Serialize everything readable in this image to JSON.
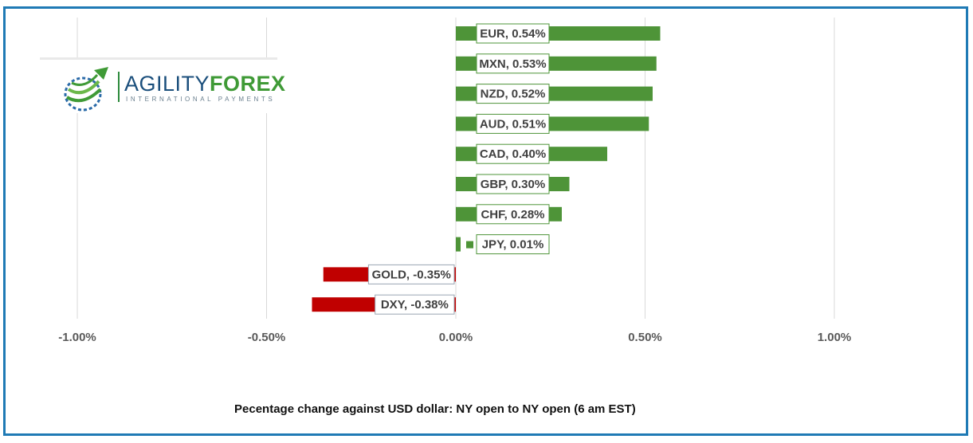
{
  "caption": "Pecentage change against USD dollar: NY open to NY open (6 am EST)",
  "logo": {
    "word_part1": "AGILITY",
    "word_part2": "FOREX",
    "subtitle": "INTERNATIONAL PAYMENTS"
  },
  "colors": {
    "positive": "#4e9438",
    "negative": "#c00000",
    "frame": "#1f7ab5",
    "grid": "#d9d9d9"
  },
  "chart_data": {
    "type": "bar",
    "orientation": "horizontal",
    "categories": [
      "EUR",
      "MXN",
      "NZD",
      "AUD",
      "CAD",
      "GBP",
      "CHF",
      "JPY",
      "GOLD",
      "DXY"
    ],
    "values": [
      0.54,
      0.53,
      0.52,
      0.51,
      0.4,
      0.3,
      0.28,
      0.01,
      -0.35,
      -0.38
    ],
    "data_labels": [
      "EUR, 0.54%",
      "MXN, 0.53%",
      "NZD, 0.52%",
      "AUD, 0.51%",
      "CAD, 0.40%",
      "GBP, 0.30%",
      "CHF, 0.28%",
      "JPY, 0.01%",
      "GOLD, -0.35%",
      "DXY, -0.38%"
    ],
    "x_ticks": [
      -1.0,
      -0.5,
      0.0,
      0.5,
      1.0
    ],
    "x_tick_labels": [
      "-1.00%",
      "-0.50%",
      "0.00%",
      "0.50%",
      "1.00%"
    ],
    "xlim": [
      -1.0,
      1.0
    ],
    "grid": true,
    "legend": "none"
  }
}
